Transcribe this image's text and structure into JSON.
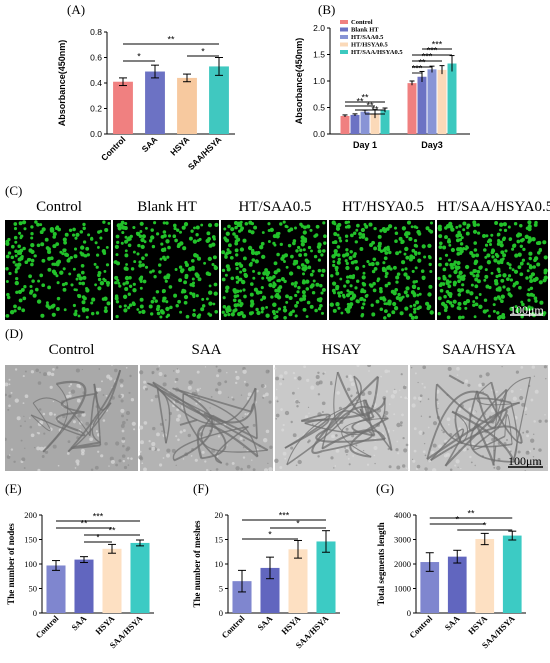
{
  "panel_labels": {
    "A": "(A)",
    "B": "(B)",
    "C": "(C)",
    "D": "(D)",
    "E": "(E)",
    "F": "(F)",
    "G": "(G)"
  },
  "colors": {
    "control": "#f08080",
    "blank": "#6c72c4",
    "hsya": "#f7c99f",
    "saa_hsya": "#40c8c0",
    "ht_saa": "#8894d6",
    "ht_hsya": "#fbd9b8",
    "ht_triple": "#3cc9bf",
    "cells": "#22c22a"
  },
  "panel_c": {
    "titles": [
      "Control",
      "Blank HT",
      "HT/SAA0.5",
      "HT/HSYA0.5",
      "HT/SAA/HSYA0.5"
    ],
    "scale": "100μm"
  },
  "panel_d": {
    "titles": [
      "Control",
      "SAA",
      "HSAY",
      "SAA/HSYA"
    ],
    "scale": "100μm"
  },
  "chart_data": [
    {
      "id": "A",
      "type": "bar",
      "ylabel": "Absorbance(450nm)",
      "ylim": [
        0,
        0.8
      ],
      "yticks": [
        "0.0",
        "0.2",
        "0.4",
        "0.6",
        "0.8"
      ],
      "categories": [
        "Control",
        "SAA",
        "HSYA",
        "SAA/HSYA"
      ],
      "values": [
        0.41,
        0.49,
        0.44,
        0.53
      ],
      "errors": [
        0.03,
        0.05,
        0.03,
        0.07
      ],
      "annotations": [
        {
          "from": 0,
          "to": 1,
          "text": "*"
        },
        {
          "from": 0,
          "to": 3,
          "text": "**"
        },
        {
          "from": 2,
          "to": 3,
          "text": "*"
        }
      ]
    },
    {
      "id": "B",
      "type": "bar",
      "ylabel": "Absorbance(450nm)",
      "ylim": [
        0,
        2.0
      ],
      "yticks": [
        "0.0",
        "0.5",
        "1.0",
        "1.5",
        "2.0"
      ],
      "groups": [
        "Day 1",
        "Day3"
      ],
      "legend": [
        "Control",
        "Blank HT",
        "HT/SAA0.5",
        "HT/HSYA0.5",
        "HT/SAA/HSYA0.5"
      ],
      "series": [
        {
          "name": "Control",
          "values": [
            0.34,
            0.96
          ],
          "errors": [
            0.02,
            0.04
          ]
        },
        {
          "name": "Blank HT",
          "values": [
            0.36,
            1.08
          ],
          "errors": [
            0.02,
            0.1
          ]
        },
        {
          "name": "HT/SAA0.5",
          "values": [
            0.42,
            1.22
          ],
          "errors": [
            0.03,
            0.06
          ]
        },
        {
          "name": "HT/HSYA0.5",
          "values": [
            0.38,
            1.21
          ],
          "errors": [
            0.08,
            0.08
          ]
        },
        {
          "name": "HT/SAA/HSYA0.5",
          "values": [
            0.45,
            1.33
          ],
          "errors": [
            0.04,
            0.15
          ]
        }
      ],
      "annotations": [
        "**",
        "**",
        "**",
        "**",
        "***",
        "***",
        "***",
        "**",
        "***"
      ]
    },
    {
      "id": "E",
      "type": "bar",
      "ylabel": "The number of nodes",
      "ylim": [
        0,
        200
      ],
      "yticks": [
        "0",
        "50",
        "100",
        "150",
        "200"
      ],
      "categories": [
        "Control",
        "SAA",
        "HSYA",
        "SAA/HSYA"
      ],
      "values": [
        97,
        109,
        131,
        143
      ],
      "errors": [
        10,
        6,
        9,
        6
      ],
      "annotations": [
        "***",
        "**",
        "**",
        "*"
      ]
    },
    {
      "id": "F",
      "type": "bar",
      "ylabel": "The number of meshes",
      "ylim": [
        0,
        20
      ],
      "yticks": [
        "0",
        "5",
        "10",
        "15",
        "20"
      ],
      "categories": [
        "Control",
        "SAA",
        "HSYA",
        "SAA/HSYA"
      ],
      "values": [
        6.5,
        9.2,
        13.0,
        14.6
      ],
      "errors": [
        2.2,
        2.2,
        1.8,
        2.2
      ],
      "annotations": [
        "***",
        "*",
        "*"
      ]
    },
    {
      "id": "G",
      "type": "bar",
      "ylabel": "Total segments length",
      "ylim": [
        0,
        4000
      ],
      "yticks": [
        "0",
        "1000",
        "2000",
        "3000",
        "4000"
      ],
      "categories": [
        "Control",
        "SAA",
        "HSYA",
        "SAA/HSYA"
      ],
      "values": [
        2080,
        2300,
        3020,
        3160
      ],
      "errors": [
        380,
        260,
        230,
        180
      ],
      "annotations": [
        "**",
        "*",
        "*"
      ]
    }
  ]
}
